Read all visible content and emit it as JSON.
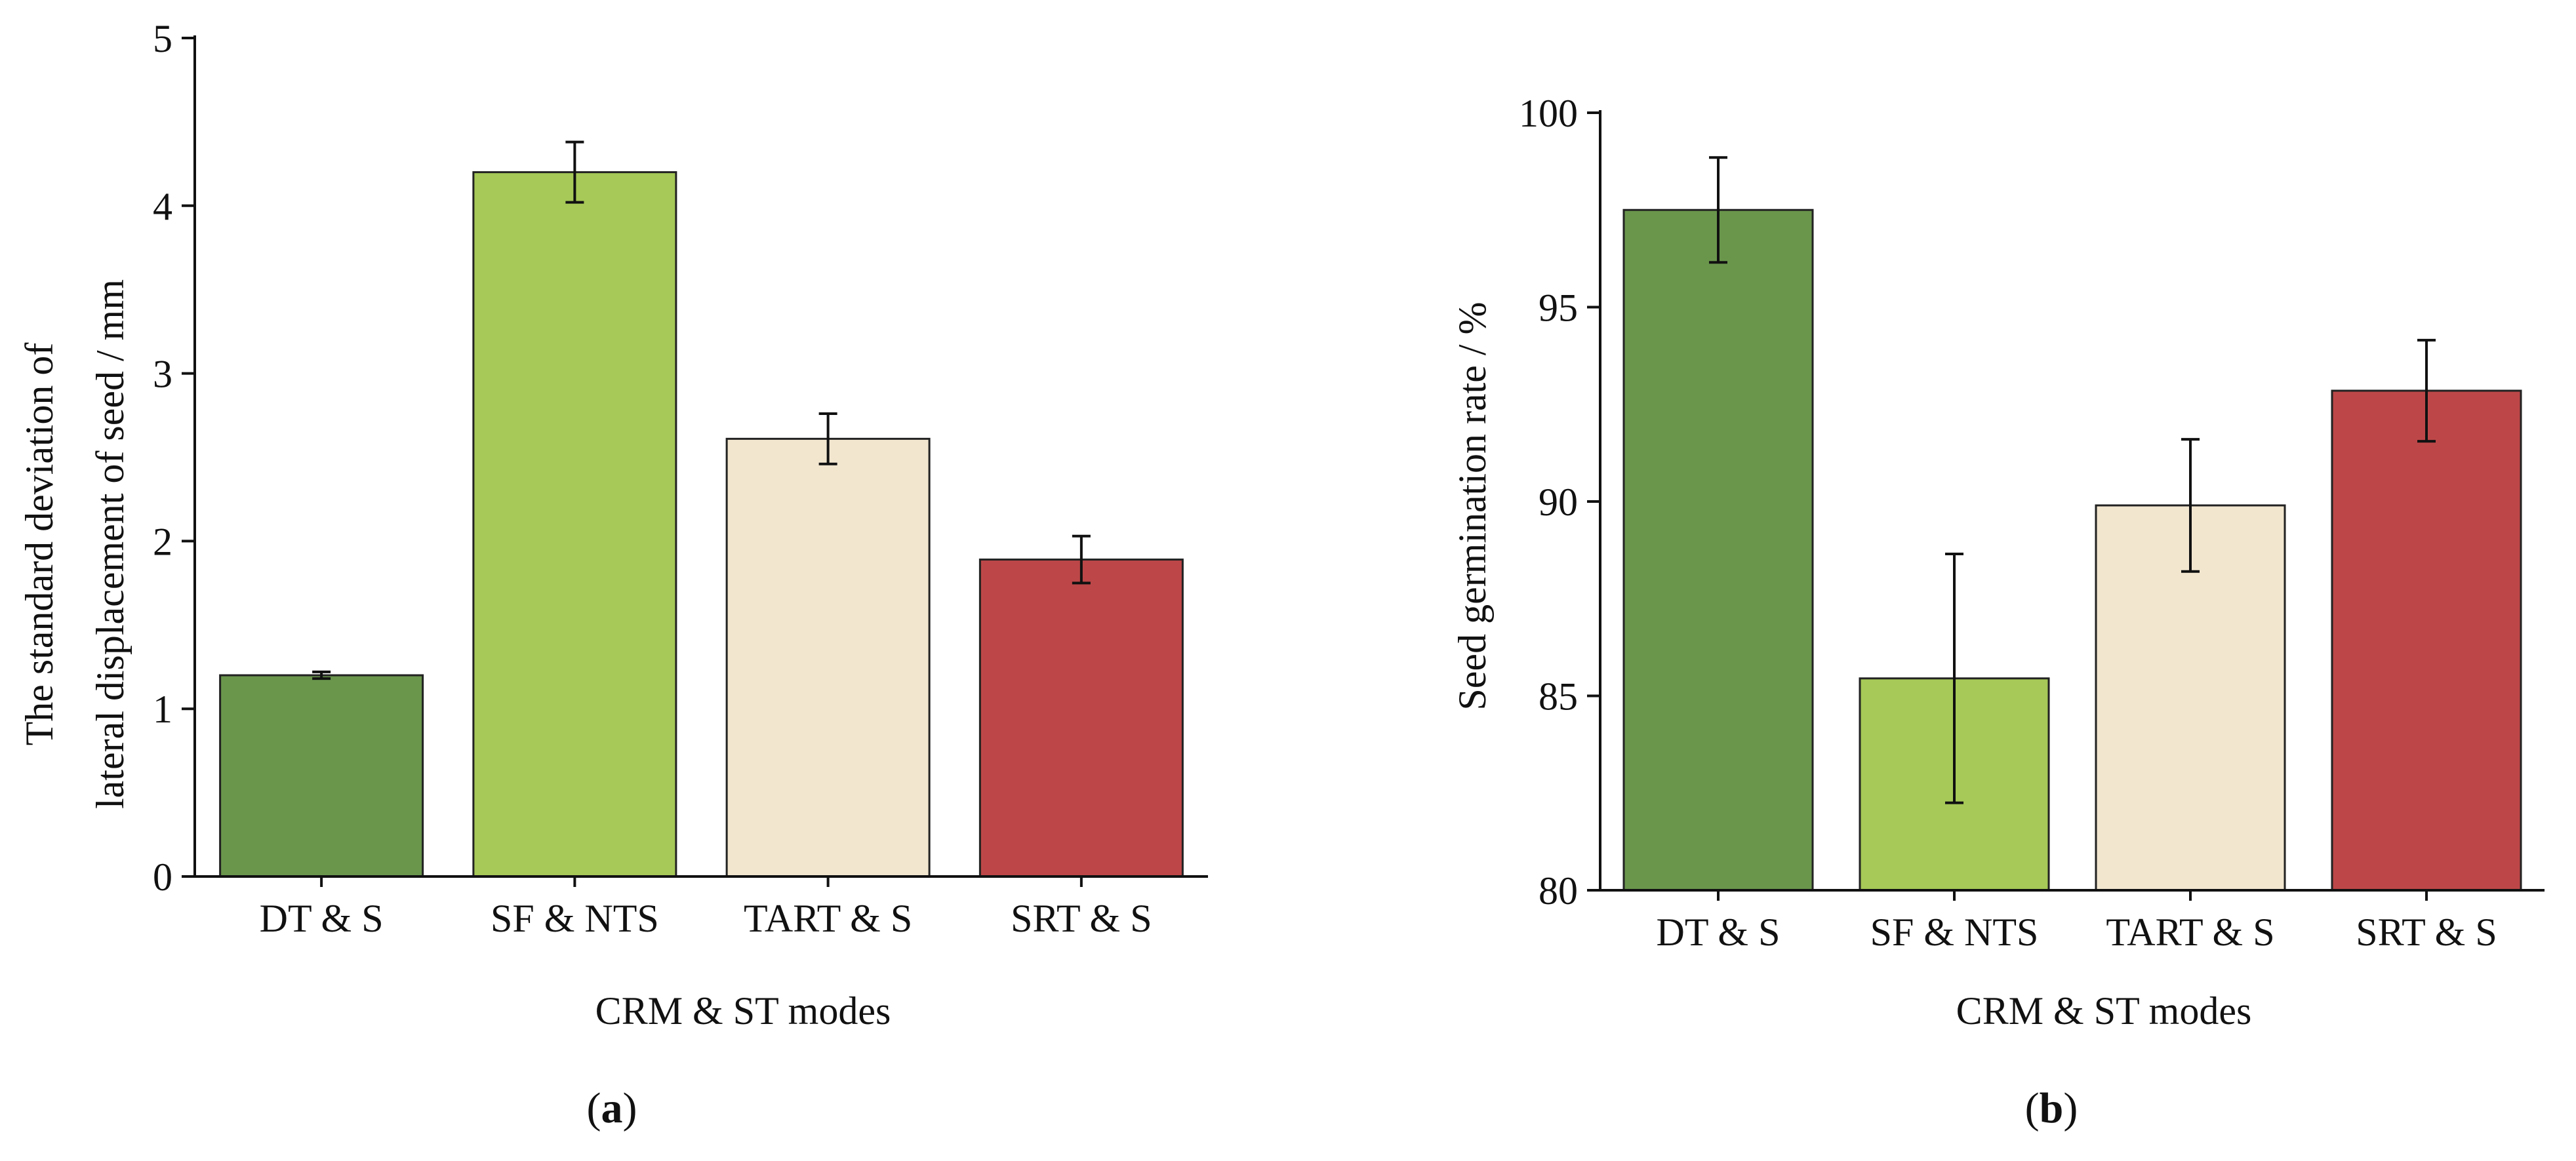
{
  "chart_data": [
    {
      "type": "bar",
      "panel_label": "a",
      "categories": [
        "DT & S",
        "SF & NTS",
        "TART & S",
        "SRT & S"
      ],
      "values": [
        1.2,
        4.2,
        2.61,
        1.89
      ],
      "errors": [
        0.02,
        0.18,
        0.15,
        0.14
      ],
      "colors": [
        "#6a964c",
        "#a6c957",
        "#f2e6cf",
        "#bd4748"
      ],
      "xlabel": "CRM & ST modes",
      "ylabel_lines": [
        "The standard deviation of",
        "lateral displacement of seed / mm"
      ],
      "ylim": [
        0,
        5
      ],
      "yticks": [
        "0",
        "1",
        "2",
        "3",
        "4",
        "5"
      ],
      "grid": false
    },
    {
      "type": "bar",
      "panel_label": "b",
      "categories": [
        "DT & S",
        "SF & NTS",
        "TART & S",
        "SRT & S"
      ],
      "values": [
        97.5,
        85.45,
        89.9,
        92.85
      ],
      "errors": [
        1.35,
        3.2,
        1.7,
        1.3
      ],
      "colors": [
        "#6a964c",
        "#a6c957",
        "#f2e6cf",
        "#bd4748"
      ],
      "xlabel": "CRM & ST modes",
      "ylabel_lines": [
        "Seed germination rate / %"
      ],
      "ylim": [
        80,
        100
      ],
      "yticks": [
        "80",
        "85",
        "90",
        "95",
        "100"
      ],
      "grid": false
    }
  ]
}
